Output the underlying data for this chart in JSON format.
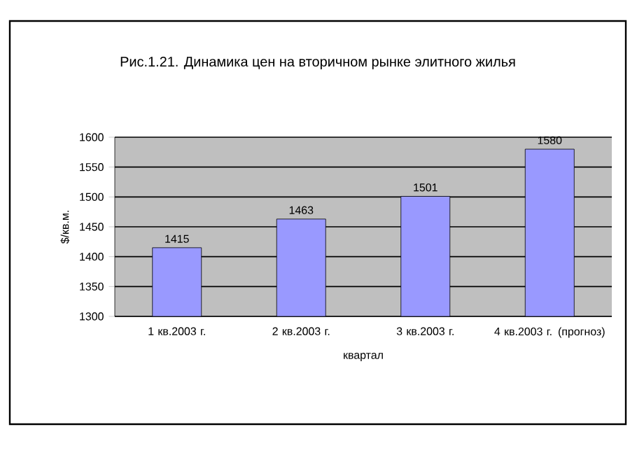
{
  "chart_data": {
    "type": "bar",
    "title": "Рис.1.21. Динамика цен на вторичном рынке элитного жилья",
    "categories": [
      "1 кв.2003 г.",
      "2 кв.2003 г.",
      "3 кв.2003 г.",
      "4 кв.2003 г. (прогноз)"
    ],
    "values": [
      1415,
      1463,
      1501,
      1580
    ],
    "color": "#9999ff",
    "xlabel": "квартал",
    "ylabel": "$/кв.м.",
    "ylim": [
      1300,
      1600
    ],
    "yticks": [
      1300,
      1350,
      1400,
      1450,
      1500,
      1550,
      1600
    ],
    "grid": "y",
    "data_labels": true
  }
}
